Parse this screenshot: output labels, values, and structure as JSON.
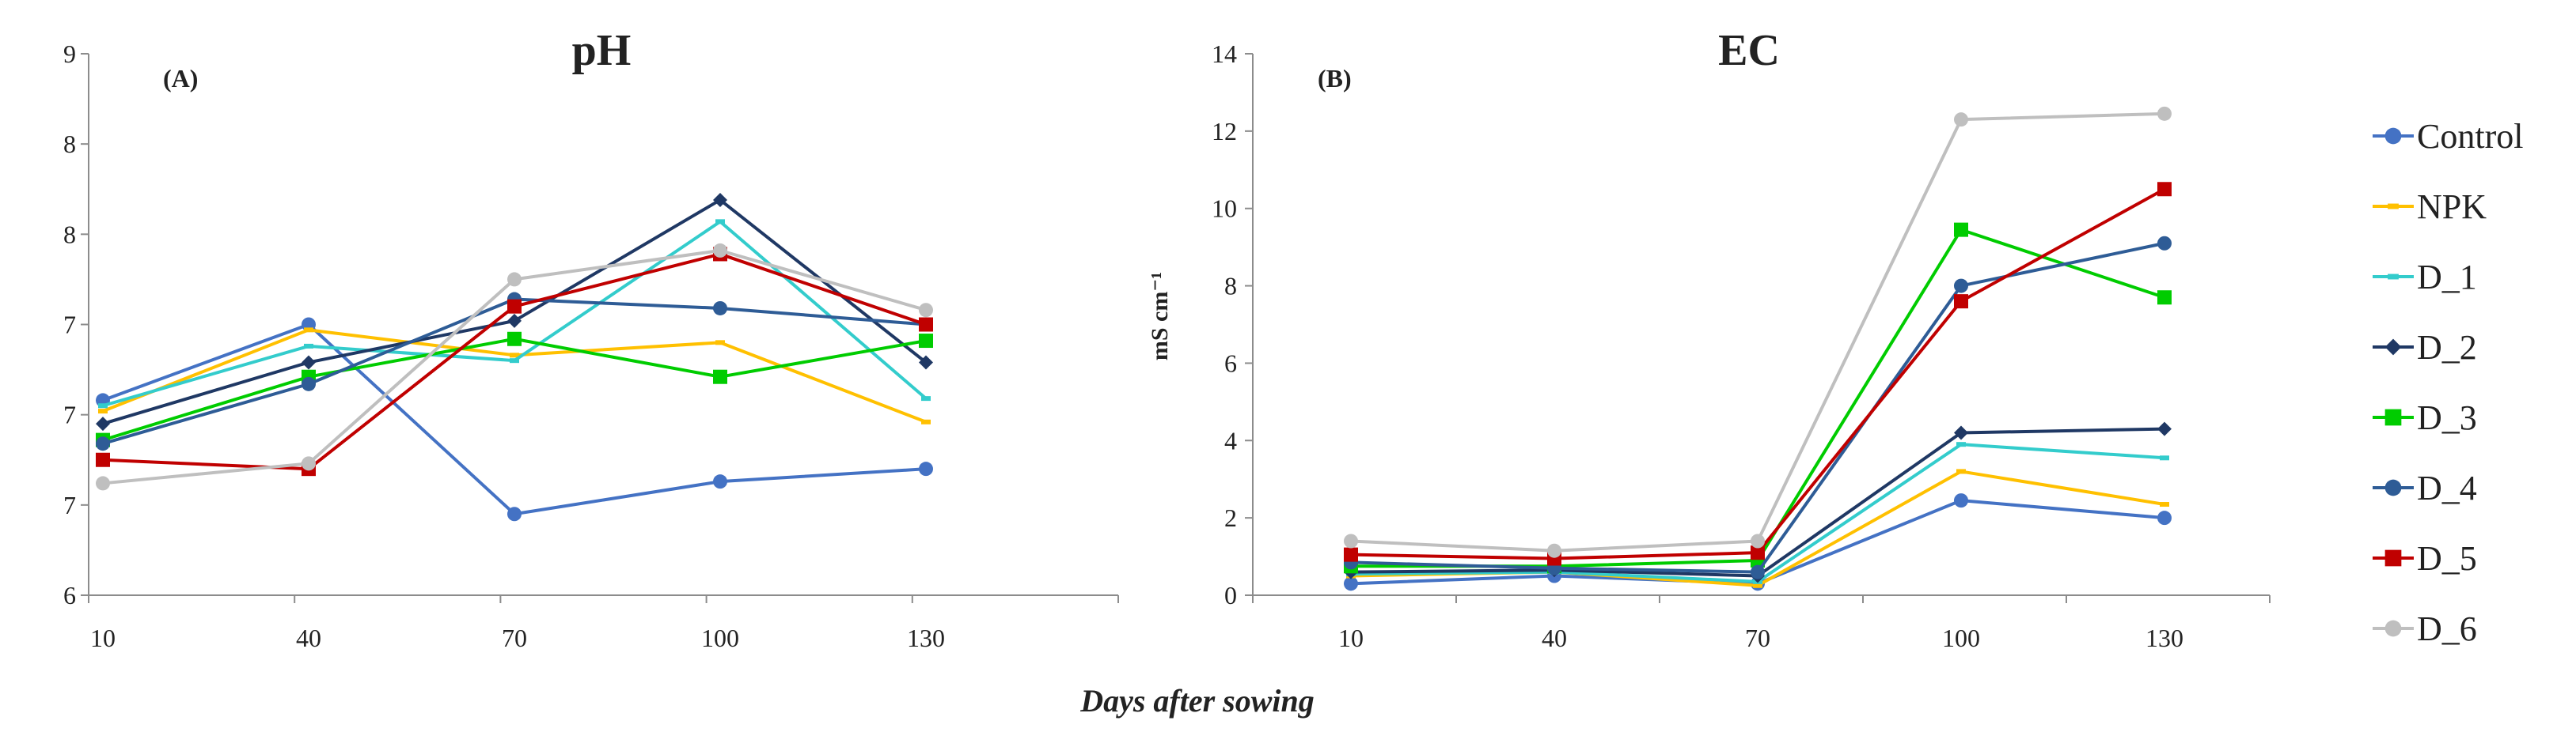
{
  "xlabel": "Days after sowing",
  "legend": {
    "items": [
      "Control",
      "NPK",
      "D_1",
      "D_2",
      "D_3",
      "D_4",
      "D_5",
      "D_6"
    ]
  },
  "series_styles": [
    {
      "name": "Control",
      "color": "#4472C4",
      "marker": "circle"
    },
    {
      "name": "NPK",
      "color": "#FFC000",
      "marker": "dash"
    },
    {
      "name": "D_1",
      "color": "#33CCCC",
      "marker": "dash"
    },
    {
      "name": "D_2",
      "color": "#1F3864",
      "marker": "diamond"
    },
    {
      "name": "D_3",
      "color": "#00CC00",
      "marker": "square"
    },
    {
      "name": "D_4",
      "color": "#2E5C96",
      "marker": "circle"
    },
    {
      "name": "D_5",
      "color": "#C00000",
      "marker": "square"
    },
    {
      "name": "D_6",
      "color": "#BFBFBF",
      "marker": "circle"
    }
  ],
  "chart_data": [
    {
      "type": "line",
      "title": "pH",
      "panel_label": "(A)",
      "xlabel": "Days after sowing",
      "ylabel": "",
      "categories": [
        "10",
        "40",
        "70",
        "100",
        "130"
      ],
      "ylim": [
        6,
        9
      ],
      "yticks": [
        6,
        6.5,
        7,
        7.5,
        8,
        8.5,
        9
      ],
      "ytick_labels": [
        "6",
        "7",
        "7",
        "7",
        "8",
        "8",
        "9"
      ],
      "series": [
        {
          "name": "Control",
          "values": [
            7.08,
            7.5,
            6.45,
            6.63,
            6.7
          ]
        },
        {
          "name": "NPK",
          "values": [
            7.02,
            7.47,
            7.33,
            7.4,
            6.96
          ]
        },
        {
          "name": "D_1",
          "values": [
            7.05,
            7.38,
            7.3,
            8.07,
            7.09
          ]
        },
        {
          "name": "D_2",
          "values": [
            6.95,
            7.29,
            7.52,
            8.19,
            7.29
          ]
        },
        {
          "name": "D_3",
          "values": [
            6.86,
            7.21,
            7.42,
            7.21,
            7.41
          ]
        },
        {
          "name": "D_4",
          "values": [
            6.84,
            7.17,
            7.64,
            7.59,
            7.5
          ]
        },
        {
          "name": "D_5",
          "values": [
            6.75,
            6.7,
            7.6,
            7.89,
            7.5
          ]
        },
        {
          "name": "D_6",
          "values": [
            6.62,
            6.73,
            7.75,
            7.91,
            7.58
          ]
        }
      ]
    },
    {
      "type": "line",
      "title": "EC",
      "panel_label": "(B)",
      "xlabel": "Days after sowing",
      "ylabel": "mS cm⁻¹",
      "categories": [
        "10",
        "40",
        "70",
        "100",
        "130"
      ],
      "ylim": [
        0,
        14
      ],
      "yticks": [
        0,
        2,
        4,
        6,
        8,
        10,
        12,
        14
      ],
      "ytick_labels": [
        "0",
        "2",
        "4",
        "6",
        "8",
        "10",
        "12",
        "14"
      ],
      "series": [
        {
          "name": "Control",
          "values": [
            0.3,
            0.5,
            0.3,
            2.45,
            2.0
          ]
        },
        {
          "name": "NPK",
          "values": [
            0.5,
            0.6,
            0.25,
            3.2,
            2.35
          ]
        },
        {
          "name": "D_1",
          "values": [
            0.55,
            0.6,
            0.35,
            3.9,
            3.55
          ]
        },
        {
          "name": "D_2",
          "values": [
            0.6,
            0.65,
            0.5,
            4.2,
            4.3
          ]
        },
        {
          "name": "D_3",
          "values": [
            0.75,
            0.75,
            0.9,
            9.45,
            7.7
          ]
        },
        {
          "name": "D_4",
          "values": [
            0.85,
            0.7,
            0.6,
            8.0,
            9.1
          ]
        },
        {
          "name": "D_5",
          "values": [
            1.05,
            0.95,
            1.1,
            7.6,
            10.5
          ]
        },
        {
          "name": "D_6",
          "values": [
            1.4,
            1.15,
            1.4,
            12.3,
            12.45
          ]
        }
      ]
    }
  ]
}
